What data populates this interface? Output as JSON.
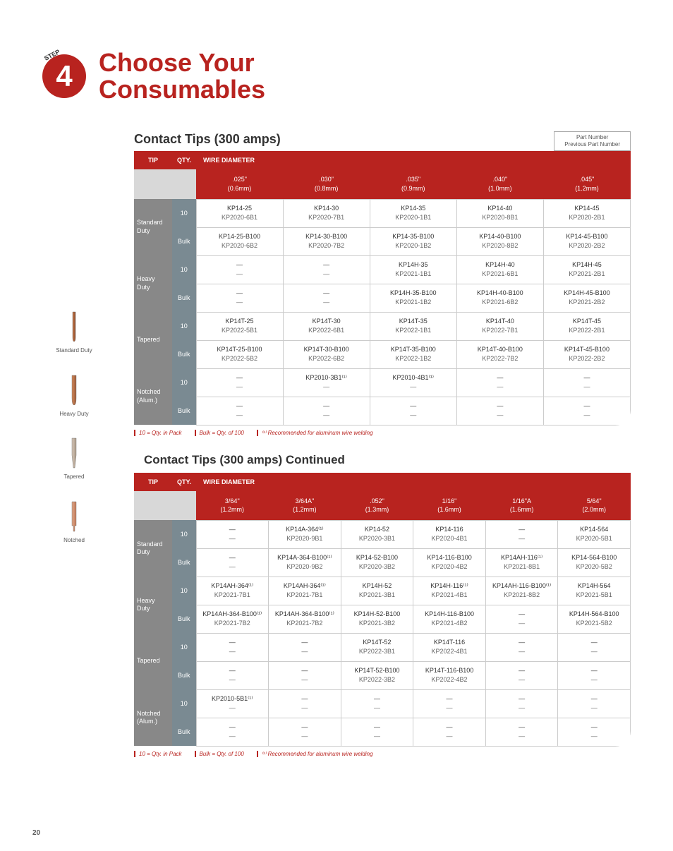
{
  "step": {
    "number": "4",
    "label": "STEP"
  },
  "title": {
    "line1": "Choose Your",
    "line2": "Consumables"
  },
  "partNote": {
    "l1": "Part Number",
    "l2": "Previous Part Number"
  },
  "table1": {
    "title": "Contact Tips (300 amps)",
    "headers": {
      "tip": "TIP",
      "qty": "QTY.",
      "wire": "WIRE DIAMETER"
    },
    "diams": [
      {
        "in": ".025\"",
        "mm": "(0.6mm)"
      },
      {
        "in": ".030\"",
        "mm": "(0.8mm)"
      },
      {
        "in": ".035\"",
        "mm": "(0.9mm)"
      },
      {
        "in": ".040\"",
        "mm": "(1.0mm)"
      },
      {
        "in": ".045\"",
        "mm": "(1.2mm)"
      }
    ],
    "groups": [
      {
        "label": "Standard Duty",
        "rows": [
          {
            "qty": "10",
            "cells": [
              [
                "KP14-25",
                "KP2020-6B1"
              ],
              [
                "KP14-30",
                "KP2020-7B1"
              ],
              [
                "KP14-35",
                "KP2020-1B1"
              ],
              [
                "KP14-40",
                "KP2020-8B1"
              ],
              [
                "KP14-45",
                "KP2020-2B1"
              ]
            ]
          },
          {
            "qty": "Bulk",
            "cells": [
              [
                "KP14-25-B100",
                "KP2020-6B2"
              ],
              [
                "KP14-30-B100",
                "KP2020-7B2"
              ],
              [
                "KP14-35-B100",
                "KP2020-1B2"
              ],
              [
                "KP14-40-B100",
                "KP2020-8B2"
              ],
              [
                "KP14-45-B100",
                "KP2020-2B2"
              ]
            ]
          }
        ]
      },
      {
        "label": "Heavy Duty",
        "rows": [
          {
            "qty": "10",
            "cells": [
              [
                "—",
                "—"
              ],
              [
                "—",
                "—"
              ],
              [
                "KP14H-35",
                "KP2021-1B1"
              ],
              [
                "KP14H-40",
                "KP2021-6B1"
              ],
              [
                "KP14H-45",
                "KP2021-2B1"
              ]
            ]
          },
          {
            "qty": "Bulk",
            "cells": [
              [
                "—",
                "—"
              ],
              [
                "—",
                "—"
              ],
              [
                "KP14H-35-B100",
                "KP2021-1B2"
              ],
              [
                "KP14H-40-B100",
                "KP2021-6B2"
              ],
              [
                "KP14H-45-B100",
                "KP2021-2B2"
              ]
            ]
          }
        ]
      },
      {
        "label": "Tapered",
        "rows": [
          {
            "qty": "10",
            "cells": [
              [
                "KP14T-25",
                "KP2022-5B1"
              ],
              [
                "KP14T-30",
                "KP2022-6B1"
              ],
              [
                "KP14T-35",
                "KP2022-1B1"
              ],
              [
                "KP14T-40",
                "KP2022-7B1"
              ],
              [
                "KP14T-45",
                "KP2022-2B1"
              ]
            ]
          },
          {
            "qty": "Bulk",
            "cells": [
              [
                "KP14T-25-B100",
                "KP2022-5B2"
              ],
              [
                "KP14T-30-B100",
                "KP2022-6B2"
              ],
              [
                "KP14T-35-B100",
                "KP2022-1B2"
              ],
              [
                "KP14T-40-B100",
                "KP2022-7B2"
              ],
              [
                "KP14T-45-B100",
                "KP2022-2B2"
              ]
            ]
          }
        ]
      },
      {
        "label": "Notched (Alum.)",
        "rows": [
          {
            "qty": "10",
            "cells": [
              [
                "—",
                "—"
              ],
              [
                "KP2010-3B1⁽¹⁾",
                "—"
              ],
              [
                "KP2010-4B1⁽¹⁾",
                "—"
              ],
              [
                "—",
                "—"
              ],
              [
                "—",
                "—"
              ]
            ]
          },
          {
            "qty": "Bulk",
            "cells": [
              [
                "—",
                "—"
              ],
              [
                "—",
                "—"
              ],
              [
                "—",
                "—"
              ],
              [
                "—",
                "—"
              ],
              [
                "—",
                "—"
              ]
            ]
          }
        ]
      }
    ]
  },
  "legend": {
    "a": "10 = Qty. in Pack",
    "b": "Bulk = Qty. of 100",
    "c": "⁽¹⁾ Recommended for aluminum wire welding"
  },
  "table2": {
    "title": "Contact Tips (300 amps) Continued",
    "headers": {
      "tip": "TIP",
      "qty": "QTY.",
      "wire": "WIRE DIAMETER"
    },
    "diams": [
      {
        "in": "3/64\"",
        "mm": "(1.2mm)"
      },
      {
        "in": "3/64A\"",
        "mm": "(1.2mm)"
      },
      {
        "in": ".052\"",
        "mm": "(1.3mm)"
      },
      {
        "in": "1/16\"",
        "mm": "(1.6mm)"
      },
      {
        "in": "1/16\"A",
        "mm": "(1.6mm)"
      },
      {
        "in": "5/64\"",
        "mm": "(2.0mm)"
      }
    ],
    "groups": [
      {
        "label": "Standard Duty",
        "rows": [
          {
            "qty": "10",
            "cells": [
              [
                "—",
                "—"
              ],
              [
                "KP14A-364⁽¹⁾",
                "KP2020-9B1"
              ],
              [
                "KP14-52",
                "KP2020-3B1"
              ],
              [
                "KP14-116",
                "KP2020-4B1"
              ],
              [
                "—",
                "—"
              ],
              [
                "KP14-564",
                "KP2020-5B1"
              ]
            ]
          },
          {
            "qty": "Bulk",
            "cells": [
              [
                "—",
                "—"
              ],
              [
                "KP14A-364-B100⁽¹⁾",
                "KP2020-9B2"
              ],
              [
                "KP14-52-B100",
                "KP2020-3B2"
              ],
              [
                "KP14-116-B100",
                "KP2020-4B2"
              ],
              [
                "KP14AH-116⁽¹⁾",
                "KP2021-8B1"
              ],
              [
                "KP14-564-B100",
                "KP2020-5B2"
              ]
            ]
          }
        ]
      },
      {
        "label": "Heavy Duty",
        "rows": [
          {
            "qty": "10",
            "cells": [
              [
                "KP14AH-364⁽¹⁾",
                "KP2021-7B1"
              ],
              [
                "KP14AH-364⁽¹⁾",
                "KP2021-7B1"
              ],
              [
                "KP14H-52",
                "KP2021-3B1"
              ],
              [
                "KP14H-116⁽¹⁾",
                "KP2021-4B1"
              ],
              [
                "KP14AH-116-B100⁽¹⁾",
                "KP2021-8B2"
              ],
              [
                "KP14H-564",
                "KP2021-5B1"
              ]
            ]
          },
          {
            "qty": "Bulk",
            "cells": [
              [
                "KP14AH-364-B100⁽¹⁾",
                "KP2021-7B2"
              ],
              [
                "KP14AH-364-B100⁽¹⁾",
                "KP2021-7B2"
              ],
              [
                "KP14H-52-B100",
                "KP2021-3B2"
              ],
              [
                "KP14H-116-B100",
                "KP2021-4B2"
              ],
              [
                "—",
                "—"
              ],
              [
                "KP14H-564-B100",
                "KP2021-5B2"
              ]
            ]
          }
        ]
      },
      {
        "label": "Tapered",
        "rows": [
          {
            "qty": "10",
            "cells": [
              [
                "—",
                "—"
              ],
              [
                "—",
                "—"
              ],
              [
                "KP14T-52",
                "KP2022-3B1"
              ],
              [
                "KP14T-116",
                "KP2022-4B1"
              ],
              [
                "—",
                "—"
              ],
              [
                "—",
                "—"
              ]
            ]
          },
          {
            "qty": "Bulk",
            "cells": [
              [
                "—",
                "—"
              ],
              [
                "—",
                "—"
              ],
              [
                "KP14T-52-B100",
                "KP2022-3B2"
              ],
              [
                "KP14T-116-B100",
                "KP2022-4B2"
              ],
              [
                "—",
                "—"
              ],
              [
                "—",
                "—"
              ]
            ]
          }
        ]
      },
      {
        "label": "Notched (Alum.)",
        "rows": [
          {
            "qty": "10",
            "cells": [
              [
                "KP2010-5B1⁽¹⁾",
                "—"
              ],
              [
                "—",
                "—"
              ],
              [
                "—",
                "—"
              ],
              [
                "—",
                "—"
              ],
              [
                "—",
                "—"
              ],
              [
                "—",
                "—"
              ]
            ]
          },
          {
            "qty": "Bulk",
            "cells": [
              [
                "—",
                "—"
              ],
              [
                "—",
                "—"
              ],
              [
                "—",
                "—"
              ],
              [
                "—",
                "—"
              ],
              [
                "—",
                "—"
              ],
              [
                "—",
                "—"
              ]
            ]
          }
        ]
      }
    ]
  },
  "side": [
    {
      "label": "Standard Duty",
      "color1": "#c97a4a",
      "color2": "#8a4a2a",
      "shape": "std"
    },
    {
      "label": "Heavy Duty",
      "color1": "#d48a5a",
      "color2": "#9a5a3a",
      "shape": "heavy"
    },
    {
      "label": "Tapered",
      "color1": "#d8c8b8",
      "color2": "#a89888",
      "shape": "taper"
    },
    {
      "label": "Notched",
      "color1": "#e0a888",
      "color2": "#c07858",
      "shape": "notch"
    }
  ],
  "pageNum": "20"
}
